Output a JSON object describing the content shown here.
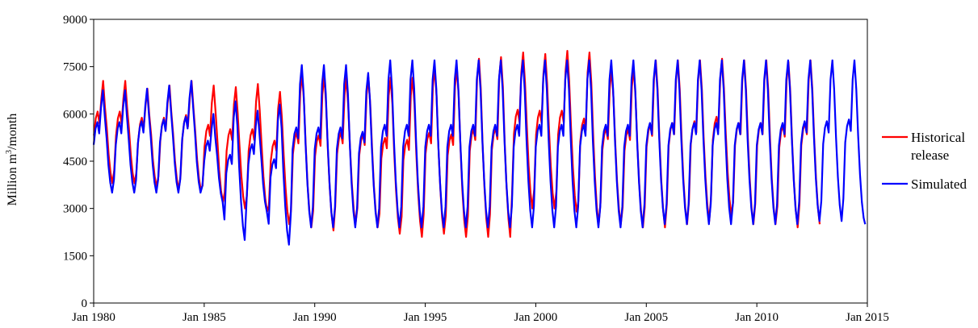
{
  "chart_data": {
    "type": "line",
    "title": "",
    "xlabel": "",
    "ylabel": {
      "main": "Million m",
      "sup": "3",
      "tail": "/month"
    },
    "xlim": [
      1980,
      2015
    ],
    "ylim": [
      0,
      9000
    ],
    "x_ticks": [
      {
        "value": 1980,
        "label": "Jan 1980"
      },
      {
        "value": 1985,
        "label": "Jan 1985"
      },
      {
        "value": 1990,
        "label": "Jan 1990"
      },
      {
        "value": 1995,
        "label": "Jan 1995"
      },
      {
        "value": 2000,
        "label": "Jan 2000"
      },
      {
        "value": 2005,
        "label": "Jan 2005"
      },
      {
        "value": 2010,
        "label": "Jan 2010"
      },
      {
        "value": 2015,
        "label": "Jan 2015"
      }
    ],
    "y_ticks": [
      0,
      1500,
      3000,
      4500,
      6000,
      7500,
      9000
    ],
    "grid": false,
    "legend_position": "right",
    "series": [
      {
        "name": "Historical release",
        "name_lines": [
          "Historical",
          "release"
        ],
        "color": "#ff0000",
        "x_start": 1980,
        "x_end": 2012.9,
        "peaks": [
          7050,
          7050,
          6800,
          6900,
          7050,
          6900,
          6850,
          6950,
          6700,
          7250,
          7200,
          7150,
          7150,
          7150,
          7150,
          7450,
          7450,
          7750,
          7800,
          7950,
          7900,
          8000,
          7950,
          7400,
          7450,
          7700,
          7700,
          7700,
          7750,
          7700,
          7700,
          7650,
          7700
        ],
        "troughs": [
          3800,
          3800,
          3700,
          3600,
          3600,
          3200,
          3000,
          2900,
          2500,
          2400,
          2300,
          2500,
          2400,
          2200,
          2100,
          2200,
          2100,
          2100,
          2100,
          3000,
          3000,
          2900,
          2500,
          2500,
          2400,
          2400,
          2500,
          2600,
          2800,
          2500,
          2500,
          2400,
          2500
        ]
      },
      {
        "name": "Simulated",
        "name_lines": [
          "Simulated"
        ],
        "color": "#0000ff",
        "x_start": 1980,
        "x_end": 2014.9,
        "peaks": [
          6750,
          6750,
          6800,
          6900,
          7050,
          6000,
          6400,
          6100,
          6300,
          7550,
          7550,
          7550,
          7300,
          7700,
          7700,
          7700,
          7700,
          7700,
          7700,
          7700,
          7700,
          7700,
          7700,
          7700,
          7700,
          7700,
          7700,
          7700,
          7700,
          7700,
          7700,
          7700,
          7700,
          7700,
          7700
        ],
        "troughs": [
          3500,
          3500,
          3500,
          3500,
          3500,
          3200,
          2000,
          2900,
          1850,
          2400,
          2400,
          2400,
          2400,
          2400,
          2400,
          2400,
          2400,
          2400,
          2400,
          2400,
          2400,
          2400,
          2400,
          2400,
          2400,
          2500,
          2500,
          2500,
          2500,
          2500,
          2500,
          2500,
          2600,
          2600,
          2700
        ],
        "final_value": 2500
      }
    ]
  }
}
